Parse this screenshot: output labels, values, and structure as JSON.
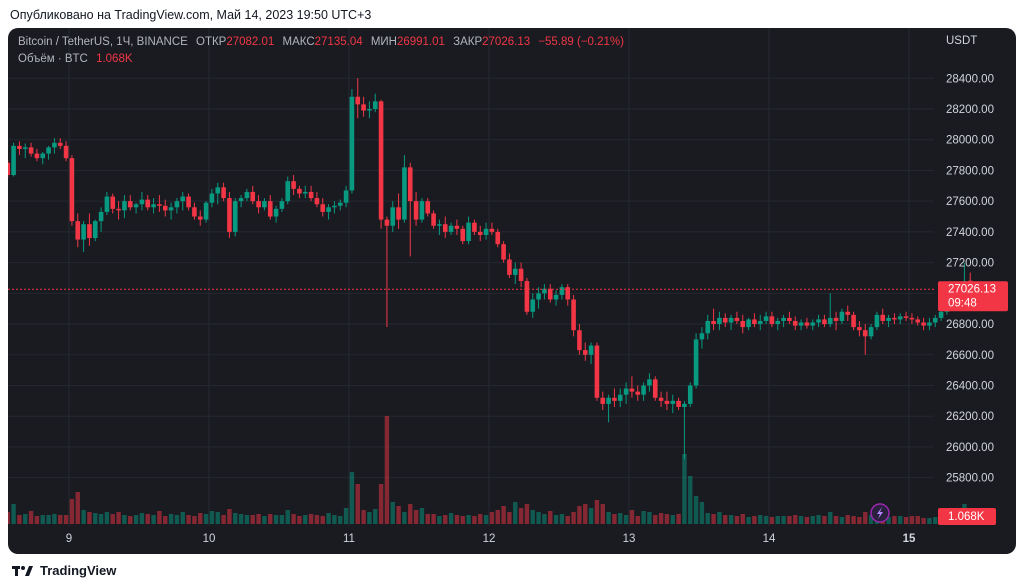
{
  "header": {
    "published": "Опубликовано на TradingView.com, Май 14, 2023 19:50 UTC+3"
  },
  "legend": {
    "symbol": "Bitcoin / TetherUS, 1Ч, BINANCE",
    "open_label": "ОТКР",
    "open": "27082.01",
    "high_label": "МАКС",
    "high": "27135.04",
    "low_label": "МИН",
    "low": "26991.01",
    "close_label": "ЗАКР",
    "close": "27026.13",
    "change": "−55.89 (−0.21%)",
    "volume_label": "Объём · BTC",
    "volume": "1.068K"
  },
  "price_axis": {
    "currency": "USDT"
  },
  "price_badge": {
    "price": "27026.13",
    "countdown": "09:48"
  },
  "volume_badge": {
    "value": "1.068K"
  },
  "footer": {
    "brand": "TradingView"
  },
  "colors": {
    "up": "#089981",
    "down": "#f23645",
    "background": "#191b21",
    "grid": "#252830",
    "text": "#d1d4dc"
  },
  "chart_data": {
    "type": "candlestick",
    "x_ticks": [
      "9",
      "10",
      "11",
      "12",
      "13",
      "14",
      "15"
    ],
    "y_ticks": [
      "25800.00",
      "26000.00",
      "26200.00",
      "26400.00",
      "26600.00",
      "26800.00",
      "27000.00",
      "27200.00",
      "27400.00",
      "27600.00",
      "27800.00",
      "28000.00",
      "28200.00",
      "28400.00"
    ],
    "y_range": [
      25700,
      28480
    ],
    "last_price": 27026.13,
    "candles_per_day": 24,
    "first_candle_offset_from_day9": -13,
    "candles": [
      [
        27930,
        27960,
        27860,
        27910
      ],
      [
        27910,
        27930,
        27820,
        27850
      ],
      [
        27850,
        27870,
        27750,
        27770
      ],
      [
        27770,
        27980,
        27760,
        27960
      ],
      [
        27960,
        27990,
        27900,
        27940
      ],
      [
        27940,
        27975,
        27880,
        27950
      ],
      [
        27950,
        27980,
        27890,
        27910
      ],
      [
        27910,
        27940,
        27860,
        27880
      ],
      [
        27880,
        27920,
        27840,
        27910
      ],
      [
        27910,
        27960,
        27870,
        27950
      ],
      [
        27950,
        28010,
        27910,
        27980
      ],
      [
        27980,
        28010,
        27940,
        27960
      ],
      [
        27960,
        27990,
        27860,
        27880
      ],
      [
        27880,
        27900,
        27440,
        27470
      ],
      [
        27470,
        27520,
        27300,
        27350
      ],
      [
        27350,
        27470,
        27270,
        27450
      ],
      [
        27450,
        27520,
        27310,
        27360
      ],
      [
        27360,
        27480,
        27340,
        27470
      ],
      [
        27470,
        27560,
        27400,
        27530
      ],
      [
        27530,
        27660,
        27510,
        27630
      ],
      [
        27630,
        27650,
        27520,
        27550
      ],
      [
        27550,
        27600,
        27480,
        27540
      ],
      [
        27540,
        27640,
        27490,
        27600
      ],
      [
        27600,
        27640,
        27540,
        27560
      ],
      [
        27560,
        27590,
        27520,
        27580
      ],
      [
        27580,
        27660,
        27540,
        27610
      ],
      [
        27610,
        27640,
        27540,
        27560
      ],
      [
        27560,
        27620,
        27520,
        27580
      ],
      [
        27580,
        27640,
        27530,
        27570
      ],
      [
        27570,
        27610,
        27500,
        27540
      ],
      [
        27540,
        27590,
        27480,
        27560
      ],
      [
        27560,
        27620,
        27520,
        27600
      ],
      [
        27600,
        27660,
        27540,
        27630
      ],
      [
        27630,
        27650,
        27540,
        27560
      ],
      [
        27560,
        27590,
        27480,
        27500
      ],
      [
        27500,
        27540,
        27440,
        27480
      ],
      [
        27480,
        27600,
        27460,
        27590
      ],
      [
        27590,
        27680,
        27560,
        27650
      ],
      [
        27650,
        27720,
        27580,
        27690
      ],
      [
        27690,
        27720,
        27600,
        27620
      ],
      [
        27620,
        27660,
        27360,
        27400
      ],
      [
        27400,
        27620,
        27370,
        27600
      ],
      [
        27600,
        27640,
        27560,
        27620
      ],
      [
        27620,
        27680,
        27600,
        27660
      ],
      [
        27660,
        27700,
        27580,
        27600
      ],
      [
        27600,
        27640,
        27520,
        27560
      ],
      [
        27560,
        27620,
        27540,
        27600
      ],
      [
        27600,
        27640,
        27480,
        27500
      ],
      [
        27500,
        27570,
        27460,
        27550
      ],
      [
        27550,
        27620,
        27530,
        27600
      ],
      [
        27600,
        27760,
        27580,
        27730
      ],
      [
        27730,
        27770,
        27640,
        27680
      ],
      [
        27680,
        27700,
        27620,
        27650
      ],
      [
        27650,
        27700,
        27620,
        27660
      ],
      [
        27660,
        27700,
        27600,
        27620
      ],
      [
        27620,
        27660,
        27560,
        27580
      ],
      [
        27580,
        27620,
        27500,
        27530
      ],
      [
        27530,
        27580,
        27480,
        27560
      ],
      [
        27560,
        27600,
        27520,
        27570
      ],
      [
        27570,
        27610,
        27540,
        27590
      ],
      [
        27590,
        27700,
        27560,
        27670
      ],
      [
        27670,
        28330,
        27650,
        28280
      ],
      [
        28280,
        28400,
        28140,
        28230
      ],
      [
        28230,
        28280,
        28150,
        28190
      ],
      [
        28190,
        28250,
        28140,
        28200
      ],
      [
        28200,
        28300,
        28180,
        28250
      ],
      [
        28250,
        28260,
        27420,
        27480
      ],
      [
        27480,
        27500,
        26780,
        27440
      ],
      [
        27440,
        27600,
        27400,
        27560
      ],
      [
        27560,
        27650,
        27420,
        27480
      ],
      [
        27480,
        27900,
        27460,
        27820
      ],
      [
        27820,
        27850,
        27240,
        27600
      ],
      [
        27600,
        27660,
        27440,
        27480
      ],
      [
        27480,
        27620,
        27460,
        27600
      ],
      [
        27600,
        27620,
        27500,
        27520
      ],
      [
        27520,
        27540,
        27420,
        27440
      ],
      [
        27440,
        27480,
        27380,
        27450
      ],
      [
        27450,
        27500,
        27360,
        27400
      ],
      [
        27400,
        27460,
        27380,
        27440
      ],
      [
        27440,
        27480,
        27380,
        27420
      ],
      [
        27420,
        27440,
        27320,
        27340
      ],
      [
        27340,
        27500,
        27320,
        27460
      ],
      [
        27460,
        27480,
        27380,
        27400
      ],
      [
        27400,
        27440,
        27340,
        27380
      ],
      [
        27380,
        27460,
        27350,
        27420
      ],
      [
        27420,
        27460,
        27380,
        27400
      ],
      [
        27400,
        27420,
        27300,
        27320
      ],
      [
        27320,
        27340,
        27200,
        27220
      ],
      [
        27220,
        27260,
        27100,
        27120
      ],
      [
        27120,
        27200,
        27060,
        27160
      ],
      [
        27160,
        27200,
        27040,
        27080
      ],
      [
        27080,
        27100,
        26860,
        26880
      ],
      [
        26880,
        27000,
        26840,
        26960
      ],
      [
        26960,
        27040,
        26900,
        27000
      ],
      [
        27000,
        27060,
        26960,
        27030
      ],
      [
        27030,
        27060,
        26940,
        26960
      ],
      [
        26960,
        27020,
        26920,
        26990
      ],
      [
        26990,
        27060,
        26960,
        27040
      ],
      [
        27040,
        27060,
        26920,
        26960
      ],
      [
        26960,
        26990,
        26720,
        26760
      ],
      [
        26760,
        26800,
        26600,
        26630
      ],
      [
        26630,
        26680,
        26560,
        26600
      ],
      [
        26600,
        26680,
        26540,
        26660
      ],
      [
        26660,
        26680,
        26300,
        26320
      ],
      [
        26320,
        26360,
        26240,
        26280
      ],
      [
        26280,
        26340,
        26160,
        26320
      ],
      [
        26320,
        26380,
        26260,
        26300
      ],
      [
        26300,
        26380,
        26260,
        26340
      ],
      [
        26340,
        26420,
        26280,
        26380
      ],
      [
        26380,
        26460,
        26320,
        26360
      ],
      [
        26360,
        26400,
        26300,
        26340
      ],
      [
        26340,
        26420,
        26300,
        26400
      ],
      [
        26400,
        26480,
        26360,
        26440
      ],
      [
        26440,
        26460,
        26300,
        26320
      ],
      [
        26320,
        26360,
        26260,
        26300
      ],
      [
        26300,
        26360,
        26240,
        26280
      ],
      [
        26280,
        26340,
        26220,
        26300
      ],
      [
        26300,
        26320,
        26240,
        26260
      ],
      [
        26260,
        26300,
        25920,
        26280
      ],
      [
        26280,
        26420,
        26260,
        26400
      ],
      [
        26400,
        26740,
        26380,
        26700
      ],
      [
        26700,
        26780,
        26640,
        26740
      ],
      [
        26740,
        26860,
        26700,
        26820
      ],
      [
        26820,
        26900,
        26760,
        26800
      ],
      [
        26800,
        26880,
        26760,
        26840
      ],
      [
        26840,
        26870,
        26780,
        26810
      ],
      [
        26810,
        26860,
        26760,
        26840
      ],
      [
        26840,
        26880,
        26800,
        26820
      ],
      [
        26820,
        26860,
        26740,
        26780
      ],
      [
        26780,
        26840,
        26760,
        26830
      ],
      [
        26830,
        26870,
        26780,
        26800
      ],
      [
        26800,
        26860,
        26760,
        26820
      ],
      [
        26820,
        26880,
        26800,
        26850
      ],
      [
        26850,
        26880,
        26780,
        26800
      ],
      [
        26800,
        26840,
        26760,
        26820
      ],
      [
        26820,
        26860,
        26780,
        26840
      ],
      [
        26840,
        26880,
        26800,
        26820
      ],
      [
        26820,
        26850,
        26760,
        26790
      ],
      [
        26790,
        26830,
        26760,
        26810
      ],
      [
        26810,
        26840,
        26770,
        26790
      ],
      [
        26790,
        26830,
        26760,
        26810
      ],
      [
        26810,
        26860,
        26780,
        26830
      ],
      [
        26830,
        26860,
        26780,
        26800
      ],
      [
        26800,
        27000,
        26780,
        26840
      ],
      [
        26840,
        26880,
        26760,
        26820
      ],
      [
        26820,
        26900,
        26800,
        26880
      ],
      [
        26880,
        26920,
        26820,
        26860
      ],
      [
        26860,
        26880,
        26760,
        26780
      ],
      [
        26780,
        26820,
        26720,
        26760
      ],
      [
        26760,
        26800,
        26600,
        26720
      ],
      [
        26720,
        26800,
        26700,
        26780
      ],
      [
        26780,
        26880,
        26760,
        26860
      ],
      [
        26860,
        26900,
        26800,
        26820
      ],
      [
        26820,
        26860,
        26780,
        26840
      ],
      [
        26840,
        26870,
        26800,
        26830
      ],
      [
        26830,
        26870,
        26800,
        26850
      ],
      [
        26850,
        26880,
        26820,
        26840
      ],
      [
        26840,
        26870,
        26800,
        26830
      ],
      [
        26830,
        26850,
        26790,
        26810
      ],
      [
        26810,
        26840,
        26760,
        26790
      ],
      [
        26790,
        26840,
        26760,
        26810
      ],
      [
        26810,
        26860,
        26780,
        26840
      ],
      [
        26840,
        26900,
        26820,
        26880
      ],
      [
        26880,
        26960,
        26860,
        26940
      ],
      [
        26940,
        27020,
        26920,
        27000
      ],
      [
        27000,
        27060,
        26980,
        27040
      ],
      [
        27040,
        27200,
        27020,
        27080
      ],
      [
        27082.01,
        27135.04,
        26991.01,
        27026.13
      ]
    ],
    "volumes": [
      8,
      10,
      12,
      20,
      9,
      10,
      13,
      8,
      9,
      9,
      10,
      9,
      9,
      25,
      32,
      14,
      12,
      11,
      10,
      12,
      10,
      12,
      9,
      8,
      9,
      11,
      10,
      9,
      13,
      8,
      10,
      9,
      12,
      9,
      8,
      11,
      10,
      13,
      12,
      9,
      15,
      11,
      10,
      9,
      9,
      10,
      8,
      10,
      9,
      9,
      14,
      10,
      8,
      9,
      10,
      9,
      8,
      11,
      9,
      8,
      16,
      52,
      40,
      14,
      12,
      15,
      40,
      108,
      22,
      18,
      12,
      20,
      14,
      16,
      10,
      10,
      8,
      9,
      11,
      9,
      8,
      9,
      8,
      10,
      9,
      12,
      14,
      18,
      12,
      22,
      16,
      20,
      14,
      12,
      10,
      13,
      9,
      10,
      8,
      12,
      18,
      20,
      16,
      24,
      20,
      12,
      10,
      11,
      9,
      14,
      8,
      13,
      12,
      9,
      11,
      10,
      9,
      10,
      70,
      48,
      28,
      22,
      11,
      10,
      12,
      9,
      9,
      8,
      10,
      7,
      8,
      9,
      8,
      7,
      8,
      8,
      8,
      9,
      8,
      7,
      8,
      9,
      8,
      12,
      8,
      7,
      9,
      8,
      7,
      12,
      9,
      8,
      8,
      7,
      8,
      8,
      7,
      8,
      8,
      6,
      6,
      7,
      8,
      9,
      10,
      12,
      20,
      14
    ]
  }
}
